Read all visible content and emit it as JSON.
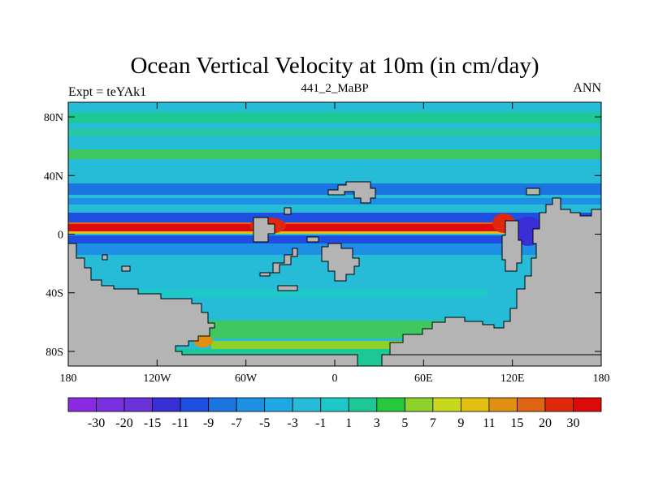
{
  "chart_data": {
    "type": "heatmap",
    "title": "Ocean Vertical Velocity at 10m (in cm/day)",
    "left_label": "Expt = teYAk1",
    "center_label": "441_2_MaBP",
    "right_label": "ANN",
    "x_ticks": [
      "180",
      "120W",
      "60W",
      "0",
      "60E",
      "120E",
      "180"
    ],
    "x_tick_values": [
      -180,
      -120,
      -60,
      0,
      60,
      120,
      180
    ],
    "y_ticks": [
      "80N",
      "40N",
      "0",
      "40S",
      "80S"
    ],
    "y_tick_values": [
      80,
      40,
      0,
      -40,
      -80
    ],
    "xlim": [
      -180,
      180
    ],
    "ylim": [
      -90,
      90
    ],
    "colorbar": {
      "labels": [
        "-30",
        "-20",
        "-15",
        "-11",
        "-9",
        "-7",
        "-5",
        "-3",
        "-1",
        "1",
        "3",
        "5",
        "7",
        "9",
        "11",
        "15",
        "20",
        "30"
      ],
      "colors": [
        "#8a2be2",
        "#7b30e0",
        "#6a33d8",
        "#3a2fd6",
        "#1f4fe0",
        "#1b74e0",
        "#1e90e4",
        "#1ea8e4",
        "#26bcd8",
        "#1fc8c8",
        "#1ec896",
        "#26c83c",
        "#8cd22a",
        "#c8d81e",
        "#e0c010",
        "#e09010",
        "#e06414",
        "#e0280e",
        "#dc0a0a"
      ]
    },
    "land_color": "#b4b4b4",
    "ocean_base_color": "#26bcd8"
  }
}
